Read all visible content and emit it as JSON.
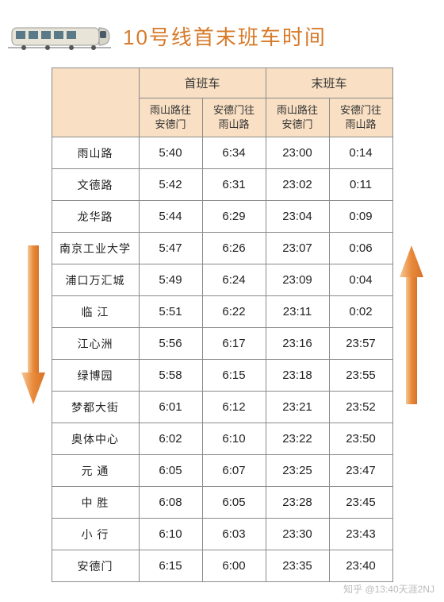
{
  "title": "10号线首末班车时间",
  "header_groups": {
    "first": "首班车",
    "last": "末班车"
  },
  "sub_headers": {
    "dir1": "雨山路往\n安德门",
    "dir2": "安德门往\n雨山路"
  },
  "stations": [
    {
      "name": "雨山路",
      "first_dir1": "5:40",
      "first_dir2": "6:34",
      "last_dir1": "23:00",
      "last_dir2": "0:14"
    },
    {
      "name": "文德路",
      "first_dir1": "5:42",
      "first_dir2": "6:31",
      "last_dir1": "23:02",
      "last_dir2": "0:11"
    },
    {
      "name": "龙华路",
      "first_dir1": "5:44",
      "first_dir2": "6:29",
      "last_dir1": "23:04",
      "last_dir2": "0:09"
    },
    {
      "name": "南京工业大学",
      "first_dir1": "5:47",
      "first_dir2": "6:26",
      "last_dir1": "23:07",
      "last_dir2": "0:06"
    },
    {
      "name": "浦口万汇城",
      "first_dir1": "5:49",
      "first_dir2": "6:24",
      "last_dir1": "23:09",
      "last_dir2": "0:04"
    },
    {
      "name": "临 江",
      "first_dir1": "5:51",
      "first_dir2": "6:22",
      "last_dir1": "23:11",
      "last_dir2": "0:02"
    },
    {
      "name": "江心洲",
      "first_dir1": "5:56",
      "first_dir2": "6:17",
      "last_dir1": "23:16",
      "last_dir2": "23:57"
    },
    {
      "name": "绿博园",
      "first_dir1": "5:58",
      "first_dir2": "6:15",
      "last_dir1": "23:18",
      "last_dir2": "23:55"
    },
    {
      "name": "梦都大街",
      "first_dir1": "6:01",
      "first_dir2": "6:12",
      "last_dir1": "23:21",
      "last_dir2": "23:52"
    },
    {
      "name": "奥体中心",
      "first_dir1": "6:02",
      "first_dir2": "6:10",
      "last_dir1": "23:22",
      "last_dir2": "23:50"
    },
    {
      "name": "元 通",
      "first_dir1": "6:05",
      "first_dir2": "6:07",
      "last_dir1": "23:25",
      "last_dir2": "23:47"
    },
    {
      "name": "中 胜",
      "first_dir1": "6:08",
      "first_dir2": "6:05",
      "last_dir1": "23:28",
      "last_dir2": "23:45"
    },
    {
      "name": "小 行",
      "first_dir1": "6:10",
      "first_dir2": "6:03",
      "last_dir1": "23:30",
      "last_dir2": "23:43"
    },
    {
      "name": "安德门",
      "first_dir1": "6:15",
      "first_dir2": "6:00",
      "last_dir1": "23:35",
      "last_dir2": "23:40"
    }
  ],
  "colors": {
    "title": "#d77a2a",
    "header_bg": "#f9e0c4",
    "border": "#8a8a8a",
    "arrow_down": "#e88a3a",
    "arrow_up": "#e88a3a"
  },
  "watermark": "知乎 @13:40天涯2NJ"
}
